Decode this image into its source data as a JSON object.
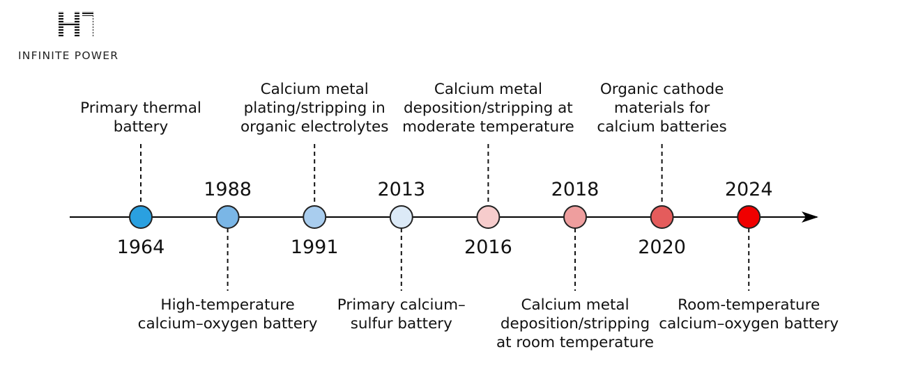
{
  "logo": {
    "mark": "HT",
    "tagline": "INFINITE POWER"
  },
  "timeline": {
    "marker_stroke": "#222222",
    "events": [
      {
        "year": "1964",
        "label": "Primary thermal\nbattery",
        "color": "#2aa0e0",
        "side": "above"
      },
      {
        "year": "1988",
        "label": "High-temperature\ncalcium–oxygen battery",
        "color": "#7ab6e6",
        "side": "below"
      },
      {
        "year": "1991",
        "label": "Calcium metal\nplating/stripping in\norganic electrolytes",
        "color": "#a9cdee",
        "side": "above"
      },
      {
        "year": "2013",
        "label": "Primary calcium–\nsulfur battery",
        "color": "#dceaf7",
        "side": "below"
      },
      {
        "year": "2016",
        "label": "Calcium metal\ndeposition/stripping at\nmoderate temperature",
        "color": "#f6cccc",
        "side": "above"
      },
      {
        "year": "2018",
        "label": "Calcium metal\ndeposition/stripping\nat room temperature",
        "color": "#ee9e9e",
        "side": "below"
      },
      {
        "year": "2020",
        "label": "Organic cathode\nmaterials for\ncalcium batteries",
        "color": "#e45c5c",
        "side": "above"
      },
      {
        "year": "2024",
        "label": "Room-temperature\ncalcium–oxygen battery",
        "color": "#f00000",
        "side": "below"
      }
    ]
  }
}
